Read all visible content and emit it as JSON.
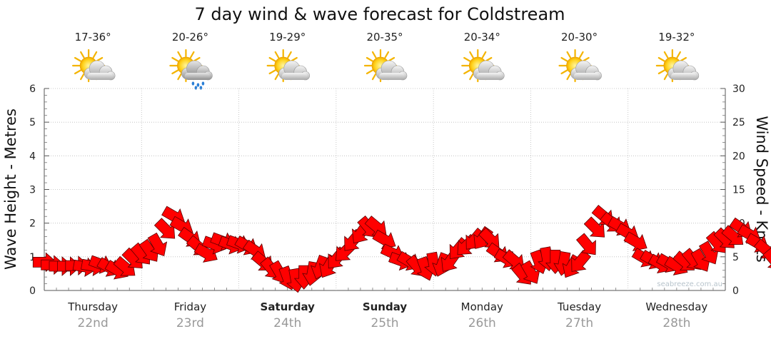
{
  "chart_data": {
    "type": "line",
    "title": "7 day wind & wave forecast for Coldstream",
    "ylabel_left": "Wave Height - Metres",
    "ylabel_right": "Wind Speed - Knots",
    "ylim_left": [
      0,
      6
    ],
    "ylim_right": [
      0,
      30
    ],
    "yticks_left": [
      "0",
      "1",
      "2",
      "3",
      "4",
      "5",
      "6"
    ],
    "yticks_right": [
      "0",
      "5",
      "10",
      "15",
      "20",
      "25",
      "30"
    ],
    "grid": true,
    "days": [
      {
        "day": "Thursday",
        "date": "22nd",
        "temp": "17-36°",
        "icon": "partly-cloudy-icon",
        "bold": false
      },
      {
        "day": "Friday",
        "date": "23rd",
        "temp": "20-26°",
        "icon": "showers-icon",
        "bold": false
      },
      {
        "day": "Saturday",
        "date": "24th",
        "temp": "19-29°",
        "icon": "partly-cloudy-icon",
        "bold": true
      },
      {
        "day": "Sunday",
        "date": "25th",
        "temp": "20-35°",
        "icon": "partly-cloudy-icon",
        "bold": true
      },
      {
        "day": "Monday",
        "date": "26th",
        "temp": "20-34°",
        "icon": "partly-cloudy-icon",
        "bold": false
      },
      {
        "day": "Tuesday",
        "date": "27th",
        "temp": "20-30°",
        "icon": "partly-cloudy-icon",
        "bold": false
      },
      {
        "day": "Wednesday",
        "date": "28th",
        "temp": "19-32°",
        "icon": "partly-cloudy-icon",
        "bold": false
      }
    ],
    "wind_series": {
      "name": "Wind speed (knots)",
      "color": "#ff0000",
      "points_per_day": 12,
      "values": [
        4.2,
        3.8,
        3.6,
        3.6,
        3.7,
        3.5,
        3.6,
        3.9,
        3.4,
        3.0,
        3.4,
        4.6,
        5.3,
        5.8,
        6.7,
        9.0,
        11.0,
        9.5,
        7.8,
        6.5,
        5.5,
        6.8,
        7.3,
        6.8,
        6.9,
        6.6,
        5.9,
        4.2,
        3.2,
        2.6,
        1.8,
        1.5,
        2.0,
        2.5,
        3.4,
        3.5,
        4.7,
        5.7,
        7.3,
        8.5,
        9.3,
        9.4,
        7.5,
        5.5,
        4.4,
        4.3,
        3.5,
        3.2,
        3.9,
        3.8,
        4.3,
        6.1,
        6.6,
        7.5,
        7.7,
        7.6,
        5.5,
        4.7,
        4.4,
        2.3,
        2.6,
        4.2,
        4.7,
        4.3,
        4.0,
        3.5,
        4.2,
        6.7,
        9.2,
        11.0,
        10.0,
        9.5,
        8.5,
        7.2,
        4.8,
        4.5,
        3.9,
        4.0,
        3.6,
        4.2,
        4.5,
        4.4,
        5.5,
        7.0,
        7.6,
        8.0,
        9.2,
        8.3,
        7.0,
        6.0,
        4.5,
        3.3,
        3.0,
        2.7,
        3.2,
        3.5,
        3.0,
        2.8,
        3.2,
        3.5,
        4.0,
        5.3,
        6.3,
        7.0,
        7.5,
        7.4,
        6.0,
        5.5
      ],
      "directions_deg": [
        270,
        270,
        270,
        270,
        270,
        280,
        280,
        290,
        300,
        300,
        310,
        315,
        320,
        325,
        330,
        315,
        300,
        300,
        305,
        310,
        300,
        290,
        290,
        290,
        290,
        300,
        305,
        310,
        320,
        330,
        340,
        350,
        0,
        10,
        20,
        30,
        40,
        45,
        40,
        35,
        320,
        310,
        300,
        295,
        290,
        300,
        320,
        340,
        350,
        20,
        35,
        40,
        45,
        40,
        35,
        315,
        305,
        300,
        310,
        320,
        330,
        340,
        350,
        0,
        10,
        30,
        40,
        320,
        315,
        310,
        310,
        300,
        300,
        300,
        300,
        300,
        300,
        300,
        300,
        310,
        320,
        330,
        330,
        320,
        315,
        310,
        305,
        300,
        300,
        310,
        320,
        330,
        340,
        350,
        0,
        20,
        30,
        40,
        40,
        40,
        40,
        40,
        330,
        320,
        310,
        300,
        300,
        300
      ]
    }
  },
  "watermark": "seabreeze.com.au"
}
